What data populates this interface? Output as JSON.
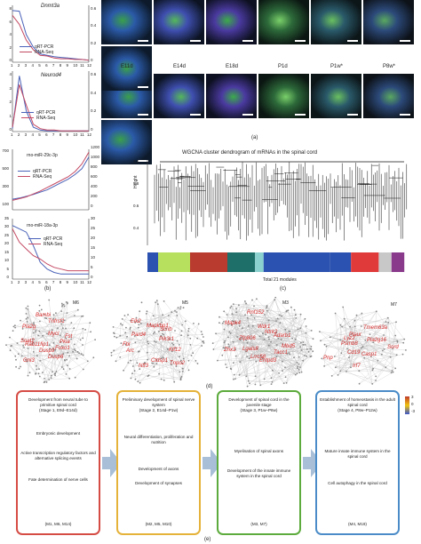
{
  "panel_labels": {
    "a": "(a)",
    "b": "(b)",
    "c": "(c)",
    "d": "(d)",
    "e": "(e)"
  },
  "panel_a": {
    "genes": [
      "Dnmt3a",
      "Neurod4"
    ],
    "legend": [
      "qRT-PCR",
      "RNA-Seq"
    ],
    "x_ticks": [
      "1",
      "2",
      "3",
      "4",
      "5",
      "6",
      "7",
      "8",
      "9",
      "10",
      "11",
      "12"
    ],
    "dnmt3a_left_ticks": [
      "8",
      "6",
      "4",
      "2",
      "0"
    ],
    "dnmt3a_right_ticks": [
      "0.6",
      "0.4",
      "0.2",
      "0"
    ],
    "neurod4_left_ticks": [
      "4",
      "3",
      "2",
      "1",
      "0"
    ],
    "neurod4_right_ticks": [
      "0.6",
      "0.4",
      "0.2",
      "0"
    ],
    "stages": [
      "E11d",
      "E14d",
      "E18d",
      "P1d",
      "P1w*",
      "P8w*"
    ]
  },
  "panel_b": {
    "mirnas": [
      "rno-miR-29c-3p",
      "rno-miR-18a-3p"
    ],
    "legend": [
      "qRT-PCR",
      "RNA-Seq"
    ],
    "x_ticks": [
      "1",
      "2",
      "3",
      "4",
      "5",
      "6",
      "7",
      "8",
      "9",
      "10",
      "11",
      "12"
    ],
    "m29_left_ticks": [
      "700",
      "500",
      "300",
      "100"
    ],
    "m29_right_ticks": [
      "1200",
      "1000",
      "800",
      "600",
      "400",
      "200",
      "0"
    ],
    "m18_left_ticks": [
      "35",
      "30",
      "25",
      "20",
      "15",
      "10",
      "5",
      "0"
    ],
    "m18_right_ticks": [
      "30",
      "25",
      "20",
      "15",
      "10",
      "5",
      "0"
    ]
  },
  "panel_c": {
    "title": "WGCNA cluster dendrogram of mRNAs in the spinal cord",
    "ylabel": "Height",
    "y_ticks": [
      "1.0",
      "0.8",
      "0.6",
      "0.4"
    ],
    "caption": "Total 21 modules",
    "module_colors": [
      "#2b52b0",
      "#b6e05e",
      "#b93a2e",
      "#1e6f6a",
      "#8ad1cf",
      "#2b52b0",
      "#2b52b0",
      "#e03a3a",
      "#c8c8c8",
      "#8a3a8a"
    ]
  },
  "panel_d": {
    "networks": [
      {
        "module": "M6",
        "genes": [
          "Pkia",
          "Foxo1",
          "Dusp6",
          "Dusp9",
          "Gnl3",
          "Rab11fip1",
          "Soat2",
          "Pla2g",
          "Bambi",
          "Tnfrsf1",
          "Mycl",
          "Fst"
        ]
      },
      {
        "module": "M5",
        "genes": [
          "Klf12",
          "Tnpo2",
          "Ctdsp1",
          "Ntf3",
          "Arc",
          "Fbl",
          "Pard4",
          "Elk2",
          "Mapkbp1",
          "Scrib",
          "Pik3r1"
        ]
      },
      {
        "module": "M3",
        "genes": [
          "Mbd5",
          "Tacc1",
          "Entpd3",
          "Lrrc58",
          "Lgals8",
          "Zhx3",
          "Zfp806",
          "Mapk4",
          "Rnf152",
          "Wdr1",
          "Ntrk2",
          "Adarb1"
        ]
      },
      {
        "module": "M7",
        "genes": [
          "Sord",
          "Casp1",
          "Irf7",
          "Cd19",
          "Pnp",
          "Psmb8",
          "Lyz2",
          "Plaur",
          "Tmem63a",
          "Pla2g16"
        ]
      }
    ],
    "heat_ticks": [
      "E9d",
      "P3d",
      "P8w"
    ],
    "scale": [
      "3",
      "0",
      "-3"
    ]
  },
  "panel_e": {
    "stages": [
      {
        "title": "Development from neural tube to primitive spinal cord",
        "sub": "(Stage 1, E9d–E14d)",
        "items": [
          "Embryonic development",
          "Active transcription regulatory factors and alternative splicing events",
          "Fate determination of nerve cells"
        ],
        "modules": "(M1, M6, M14)",
        "color": "#d54c45"
      },
      {
        "title": "Preliminary development of spinal nerve system",
        "sub": "(Stage 2, E14d–P1w)",
        "items": [
          "Neural differentiation, proliferation and nutrition",
          "Development of axons",
          "Development of synapses"
        ],
        "modules": "(M2, M5, M10)",
        "color": "#e5b23a"
      },
      {
        "title": "Development of spinal cord in the juvenile stage",
        "sub": "(Stage 3, P1w–P8w)",
        "items": [
          "Myelination of spinal axons",
          "Development of the innate immune system in the spinal cord"
        ],
        "modules": "(M3, M7)",
        "color": "#5cab3c"
      },
      {
        "title": "Establishment of homeostasis in the adult spinal cord",
        "sub": "(Stage 4, P8w–P12w)",
        "items": [
          "Mature innate immune system in the spinal cord",
          "Cell autophagy in the spinal cord"
        ],
        "modules": "(M4, M19)",
        "color": "#4b8cc8"
      }
    ]
  }
}
